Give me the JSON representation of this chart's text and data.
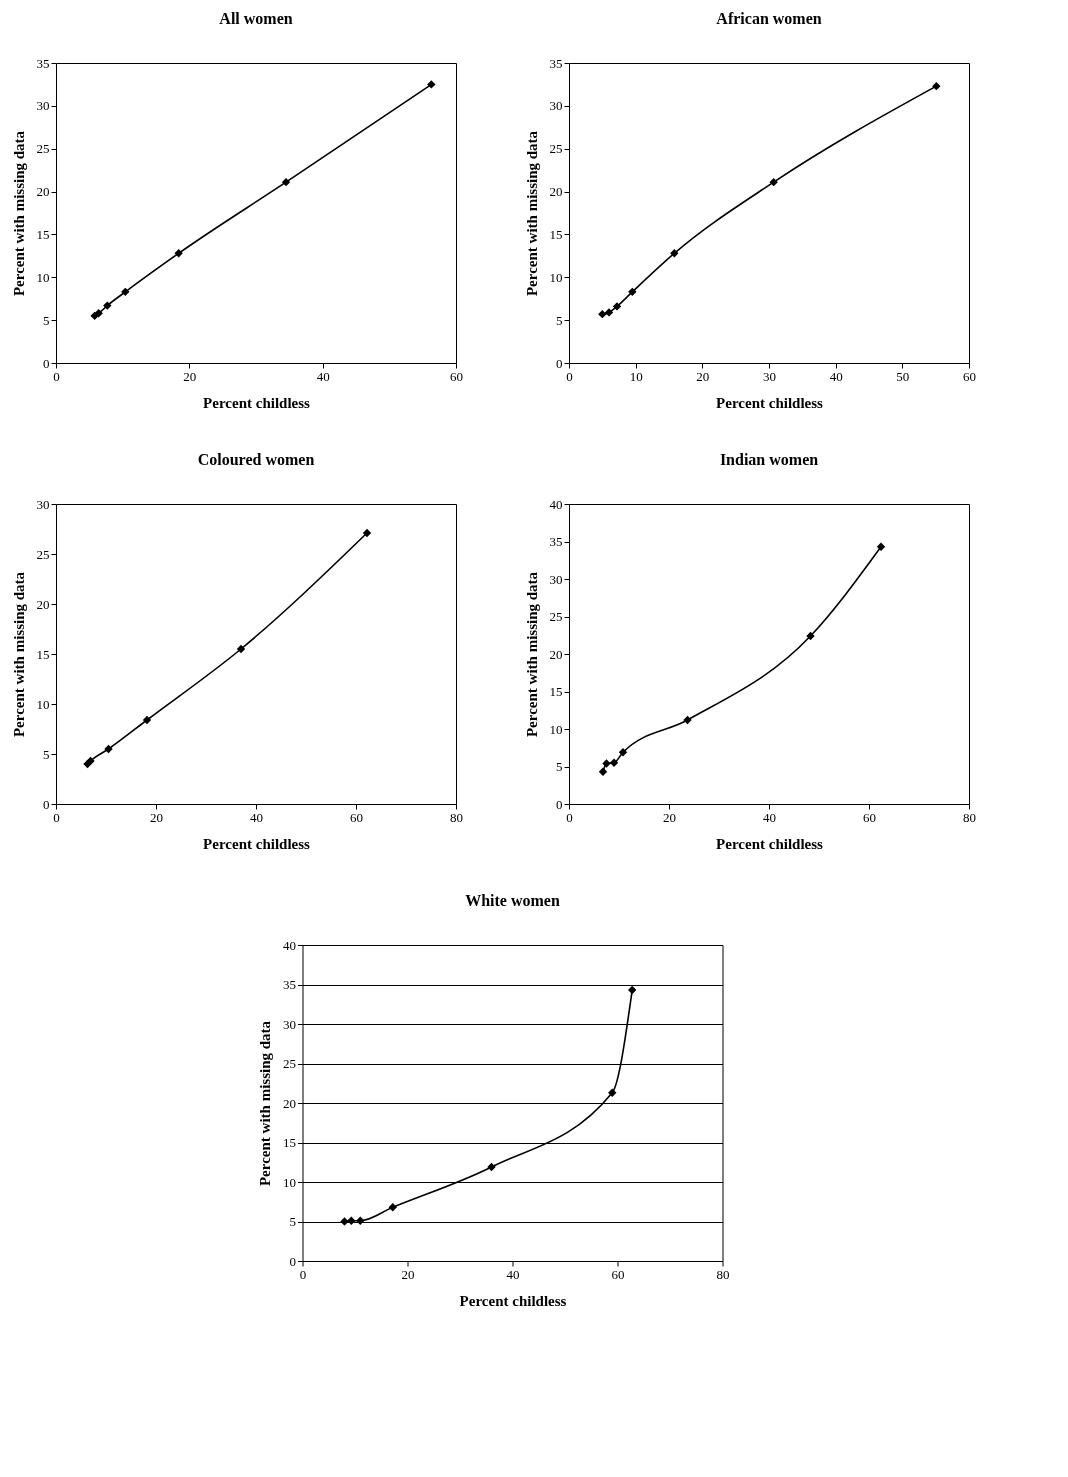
{
  "chart_data": [
    {
      "type": "line",
      "title": "All women",
      "xlabel": "Percent childless",
      "ylabel": "Percent with missing data",
      "x": [
        5.8,
        6.4,
        7.7,
        10.4,
        18.4,
        34.5,
        56.3
      ],
      "series": [
        {
          "color": "#000000",
          "values": [
            5.5,
            5.8,
            6.7,
            8.3,
            12.8,
            21.1,
            32.5
          ]
        }
      ],
      "xlim": [
        0,
        60
      ],
      "xticks": [
        0,
        20,
        40,
        60
      ],
      "ylim": [
        0,
        35
      ],
      "yticks": [
        0,
        5,
        10,
        15,
        20,
        25,
        30,
        35
      ],
      "marker": "diamond",
      "line_style": "solid"
    },
    {
      "type": "line",
      "title": "African women",
      "xlabel": "Percent childless",
      "ylabel": "Percent with missing data",
      "x": [
        5,
        6,
        7.2,
        9.5,
        15.8,
        30.7,
        55.1
      ],
      "series": [
        {
          "color": "#000000",
          "values": [
            5.7,
            5.9,
            6.6,
            8.3,
            12.8,
            21.1,
            32.3
          ]
        }
      ],
      "xlim": [
        0,
        60
      ],
      "xticks": [
        0,
        10,
        20,
        30,
        40,
        50,
        60
      ],
      "ylim": [
        0,
        35
      ],
      "yticks": [
        0,
        5,
        10,
        15,
        20,
        25,
        30,
        35
      ],
      "marker": "diamond",
      "line_style": "solid"
    },
    {
      "type": "line",
      "title": "Coloured women",
      "xlabel": "Percent childless",
      "ylabel": "Percent with missing data",
      "x": [
        6.3,
        6.9,
        10.5,
        18.2,
        37,
        62.2
      ],
      "series": [
        {
          "color": "#000000",
          "values": [
            4.0,
            4.3,
            5.5,
            8.4,
            15.5,
            27.1
          ]
        }
      ],
      "xlim": [
        0,
        80
      ],
      "xticks": [
        0,
        20,
        40,
        60,
        80
      ],
      "ylim": [
        0,
        30
      ],
      "yticks": [
        0,
        5,
        10,
        15,
        20,
        25,
        30
      ],
      "marker": "diamond",
      "line_style": "solid"
    },
    {
      "type": "line",
      "title": "Indian women",
      "xlabel": "Percent childless",
      "ylabel": "Percent with missing data",
      "x": [
        6.8,
        7.5,
        9,
        10.8,
        23.7,
        48.3,
        62.4
      ],
      "series": [
        {
          "color": "#000000",
          "values": [
            4.3,
            5.4,
            5.5,
            6.9,
            11.2,
            22.4,
            34.3
          ]
        }
      ],
      "xlim": [
        0,
        80
      ],
      "xticks": [
        0,
        20,
        40,
        60,
        80
      ],
      "ylim": [
        0,
        40
      ],
      "yticks": [
        0,
        5,
        10,
        15,
        20,
        25,
        30,
        35,
        40
      ],
      "marker": "diamond",
      "line_style": "solid"
    },
    {
      "type": "line",
      "title": "White women",
      "xlabel": "Percent childless",
      "ylabel": "Percent with missing data",
      "x": [
        8,
        9.3,
        11,
        17.2,
        36,
        59,
        62.8
      ],
      "series": [
        {
          "color": "#000000",
          "values": [
            5,
            5.1,
            5.1,
            6.8,
            11.9,
            21.3,
            34.3
          ]
        }
      ],
      "xlim": [
        0,
        80
      ],
      "xticks": [
        0,
        20,
        40,
        60,
        80
      ],
      "ylim": [
        0,
        40
      ],
      "yticks": [
        0,
        5,
        10,
        15,
        20,
        25,
        30,
        35,
        40
      ],
      "grid": "y",
      "marker": "diamond",
      "line_style": "solid"
    }
  ]
}
